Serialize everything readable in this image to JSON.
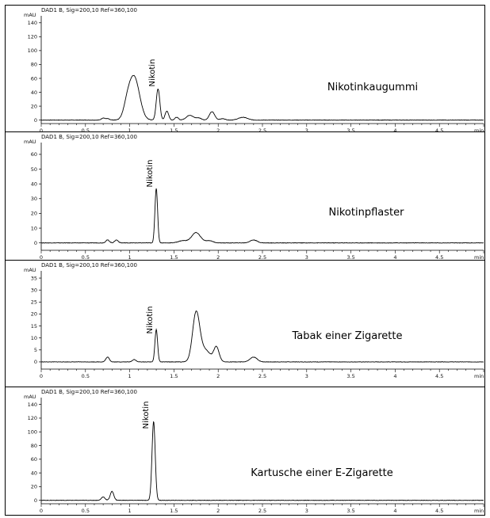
{
  "chart_data": [
    {
      "type": "line",
      "header": "DAD1 B, Sig=200,10 Ref=360,100",
      "ylabel": "mAU",
      "xunit": "min",
      "x_ticks": [
        "0",
        "0.5",
        "1",
        "1.5",
        "2",
        "2.5",
        "3",
        "3.5",
        "4",
        "4.5"
      ],
      "y_ticks": [
        "0",
        "20",
        "40",
        "60",
        "80",
        "100",
        "120",
        "140"
      ],
      "xlim": [
        0,
        5.0
      ],
      "ylim": [
        -5,
        150
      ],
      "sample": "Nikotinkaugummi",
      "peak_label": "Nikotin",
      "peak_time": 1.32,
      "baseline": 0,
      "peaks": [
        {
          "t": 0.7,
          "h": 3,
          "w": 0.02
        },
        {
          "t": 0.75,
          "h": 2,
          "w": 0.02
        },
        {
          "t": 1.05,
          "h": 62,
          "w": 0.06
        },
        {
          "t": 0.97,
          "h": 15,
          "w": 0.04
        },
        {
          "t": 1.32,
          "h": 45,
          "w": 0.02
        },
        {
          "t": 1.42,
          "h": 13,
          "w": 0.02
        },
        {
          "t": 1.53,
          "h": 4,
          "w": 0.02
        },
        {
          "t": 1.68,
          "h": 7,
          "w": 0.04
        },
        {
          "t": 1.78,
          "h": 3,
          "w": 0.03
        },
        {
          "t": 1.93,
          "h": 12,
          "w": 0.03
        },
        {
          "t": 2.05,
          "h": 2,
          "w": 0.03
        },
        {
          "t": 2.28,
          "h": 4,
          "w": 0.05
        }
      ]
    },
    {
      "type": "line",
      "header": "DAD1 B, Sig=200,10 Ref=360,100",
      "ylabel": "mAU",
      "xunit": "min",
      "x_ticks": [
        "0",
        "0.5",
        "1",
        "1.5",
        "2",
        "2.5",
        "3",
        "3.5",
        "4",
        "4.5"
      ],
      "y_ticks": [
        "0",
        "10",
        "20",
        "30",
        "40",
        "50",
        "60"
      ],
      "xlim": [
        0,
        5.0
      ],
      "ylim": [
        -5,
        68
      ],
      "sample": "Nikotinpflaster",
      "peak_label": "Nikotin",
      "peak_time": 1.3,
      "baseline": 0,
      "peaks": [
        {
          "t": 0.75,
          "h": 2,
          "w": 0.02
        },
        {
          "t": 0.85,
          "h": 2,
          "w": 0.02
        },
        {
          "t": 1.3,
          "h": 37,
          "w": 0.015
        },
        {
          "t": 1.6,
          "h": 1.5,
          "w": 0.05
        },
        {
          "t": 1.75,
          "h": 7,
          "w": 0.05
        },
        {
          "t": 1.9,
          "h": 1.5,
          "w": 0.04
        },
        {
          "t": 2.4,
          "h": 2,
          "w": 0.04
        }
      ]
    },
    {
      "type": "line",
      "header": "DAD1 B, Sig=200,10 Ref=360,100",
      "ylabel": "mAU",
      "xunit": "min",
      "x_ticks": [
        "0",
        "0.5",
        "1",
        "1.5",
        "2",
        "2.5",
        "3",
        "3.5",
        "4",
        "4.5"
      ],
      "y_ticks": [
        "0",
        "5",
        "10",
        "15",
        "20",
        "25",
        "30",
        "35"
      ],
      "xlim": [
        0,
        5.0
      ],
      "ylim": [
        -3,
        38
      ],
      "sample": "Tabak einer Zigarette",
      "peak_label": "Nikotin",
      "peak_time": 1.3,
      "baseline": 0,
      "peaks": [
        {
          "t": 0.75,
          "h": 2,
          "w": 0.02
        },
        {
          "t": 1.05,
          "h": 1,
          "w": 0.02
        },
        {
          "t": 1.3,
          "h": 13.5,
          "w": 0.015
        },
        {
          "t": 1.75,
          "h": 20,
          "w": 0.04
        },
        {
          "t": 1.85,
          "h": 5,
          "w": 0.06
        },
        {
          "t": 1.98,
          "h": 6,
          "w": 0.03
        },
        {
          "t": 2.4,
          "h": 2,
          "w": 0.04
        }
      ]
    },
    {
      "type": "line",
      "header": "DAD1 B, Sig=200,10 Ref=360,100",
      "ylabel": "mAU",
      "xunit": "min",
      "x_ticks": [
        "0",
        "0.5",
        "1",
        "1.5",
        "2",
        "2.5",
        "3",
        "3.5",
        "4",
        "4.5"
      ],
      "y_ticks": [
        "0",
        "20",
        "40",
        "60",
        "80",
        "100",
        "120",
        "140"
      ],
      "xlim": [
        0,
        5.0
      ],
      "ylim": [
        -5,
        150
      ],
      "sample": "Kartusche einer E-Zigarette",
      "peak_label": "Nikotin",
      "peak_time": 1.27,
      "baseline": 0,
      "peaks": [
        {
          "t": 0.7,
          "h": 5,
          "w": 0.02
        },
        {
          "t": 0.8,
          "h": 13,
          "w": 0.02
        },
        {
          "t": 1.27,
          "h": 115,
          "w": 0.018
        }
      ]
    }
  ]
}
